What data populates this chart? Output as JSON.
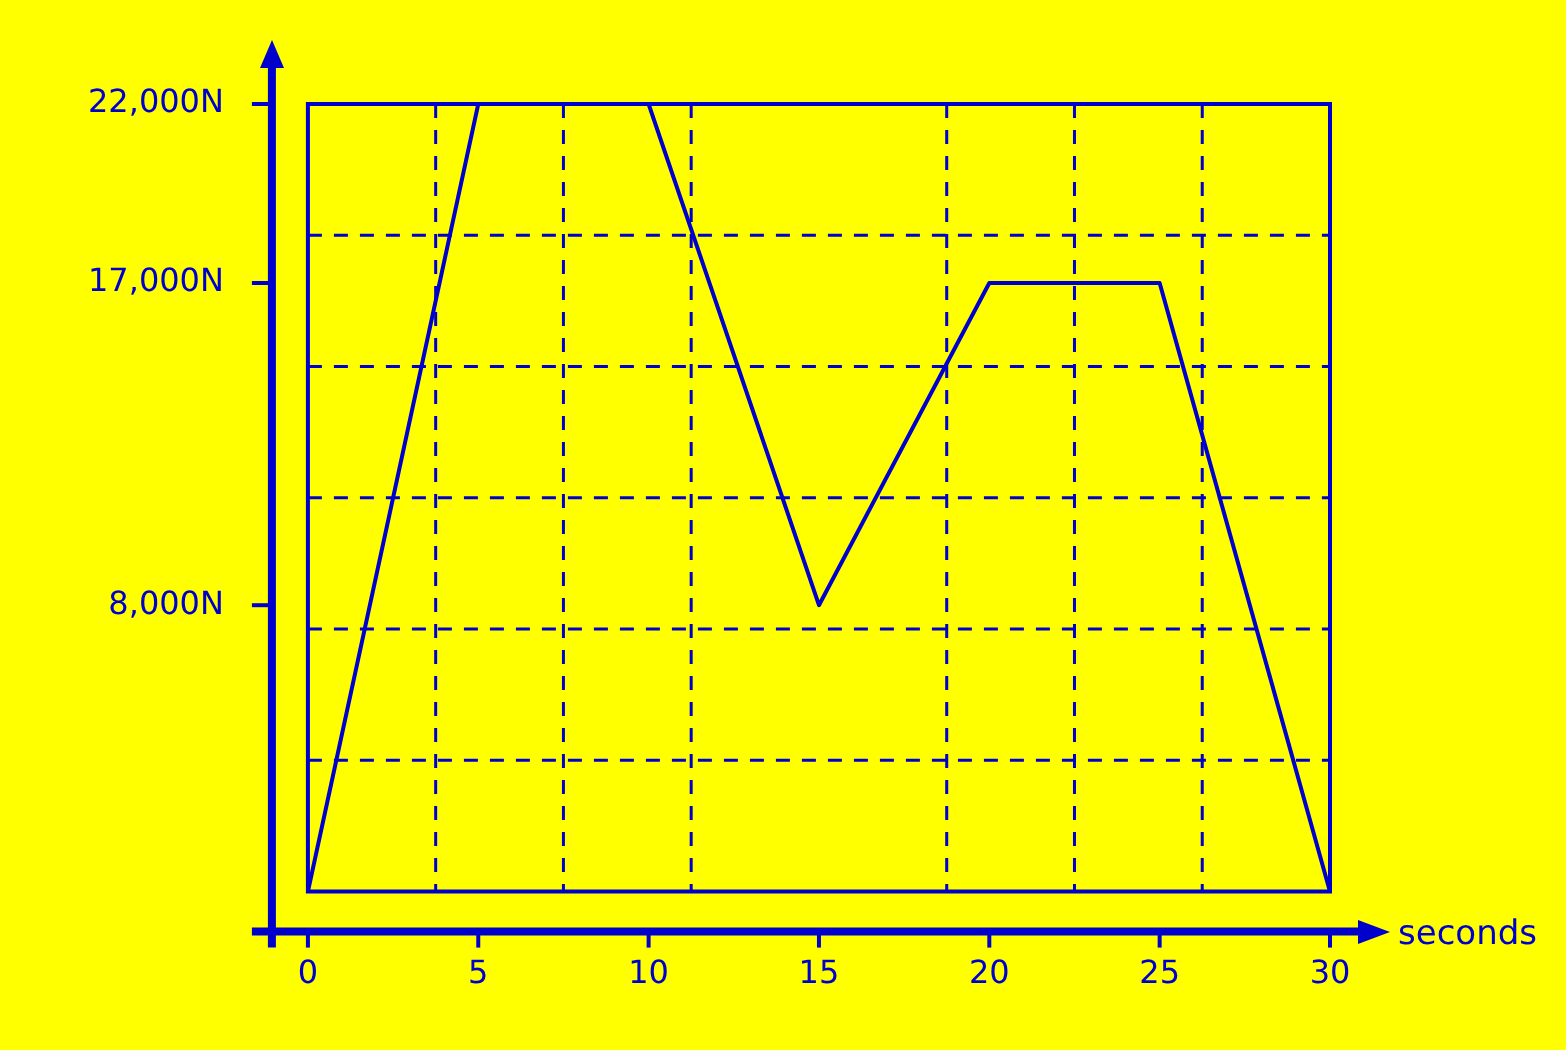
{
  "chart_data": {
    "type": "line",
    "xlabel": "seconds",
    "x": [
      0,
      5,
      10,
      15,
      20,
      25,
      30
    ],
    "values": [
      0,
      22000,
      22000,
      8000,
      17000,
      17000,
      0
    ],
    "color": "#0000cc",
    "marker": "none",
    "line_style": "solid",
    "grid": true,
    "legend": false,
    "xlim": [
      0,
      30
    ],
    "xticks": [
      0,
      {
        "value": 3.75,
        "label": null
      },
      5,
      {
        "value": 7.5,
        "label": null
      },
      10,
      {
        "value": 11.25,
        "label": null
      },
      15,
      {
        "value": 18.75,
        "label": null
      },
      20,
      {
        "value": 22.5,
        "label": null
      },
      25,
      {
        "value": 26.25,
        "label": null
      },
      30
    ],
    "ylim": [
      0,
      22000
    ],
    "yticks": [
      {
        "value": 3667,
        "label": null
      },
      {
        "value": 7333,
        "label": null
      },
      {
        "value": 8000,
        "label": "8,000N"
      },
      {
        "value": 11000,
        "label": null
      },
      {
        "value": 14667,
        "label": null
      },
      {
        "value": 17000,
        "label": "17,000N"
      },
      {
        "value": 18333,
        "label": null
      },
      {
        "value": 22000,
        "label": "22,000N"
      }
    ]
  }
}
